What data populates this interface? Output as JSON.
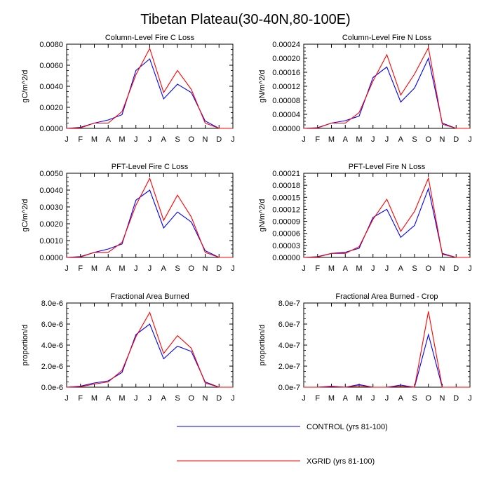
{
  "figure": {
    "title": "Tibetan Plateau(30-40N,80-100E)"
  },
  "legend": {
    "entries": [
      {
        "label": "CONTROL (yrs 81-100)",
        "color": "#0000ff"
      },
      {
        "label": "XGRID (yrs 81-100)",
        "color": "#ff0000"
      }
    ]
  },
  "chart_data": [
    {
      "type": "line",
      "title": "Column-Level Fire C Loss",
      "xlabel": "",
      "ylabel": "gC/m^2/d",
      "categories": [
        "J",
        "F",
        "M",
        "A",
        "M",
        "J",
        "J",
        "A",
        "S",
        "O",
        "N",
        "D",
        "J"
      ],
      "ylim": [
        0,
        0.008
      ],
      "yticks": [
        "0.0000",
        "0.0020",
        "0.0040",
        "0.0060",
        "0.0080"
      ],
      "series": [
        {
          "name": "CONTROL (yrs 81-100)",
          "color": "#0000ff",
          "values": [
            0,
            0.0001,
            0.0005,
            0.0008,
            0.0013,
            0.0055,
            0.0066,
            0.0028,
            0.0042,
            0.0034,
            0.0007,
            0,
            0
          ]
        },
        {
          "name": "XGRID (yrs 81-100)",
          "color": "#ff0000",
          "values": [
            0,
            5e-05,
            0.0005,
            0.0005,
            0.0016,
            0.0051,
            0.0076,
            0.0034,
            0.0055,
            0.0037,
            0.0005,
            0,
            0
          ]
        }
      ]
    },
    {
      "type": "line",
      "title": "Column-Level Fire N Loss",
      "xlabel": "",
      "ylabel": "gN/m^2/d",
      "categories": [
        "J",
        "F",
        "M",
        "A",
        "M",
        "J",
        "J",
        "A",
        "S",
        "O",
        "N",
        "D",
        "J"
      ],
      "ylim": [
        0,
        0.00024
      ],
      "yticks": [
        "0.00000",
        "0.00004",
        "0.00008",
        "0.00012",
        "0.00016",
        "0.00020",
        "0.00024"
      ],
      "series": [
        {
          "name": "CONTROL (yrs 81-100)",
          "color": "#0000ff",
          "values": [
            0,
            2e-06,
            1.5e-05,
            2.2e-05,
            3.5e-05,
            0.000145,
            0.000175,
            7.5e-05,
            0.000115,
            0.0002,
            1.5e-05,
            0,
            0
          ]
        },
        {
          "name": "XGRID (yrs 81-100)",
          "color": "#ff0000",
          "values": [
            0,
            1e-06,
            1.5e-05,
            1.5e-05,
            4.5e-05,
            0.000135,
            0.00021,
            9.5e-05,
            0.000155,
            0.00023,
            1.2e-05,
            0,
            0
          ]
        }
      ]
    },
    {
      "type": "line",
      "title": "PFT-Level Fire C Loss",
      "xlabel": "",
      "ylabel": "gC/m^2/d",
      "categories": [
        "J",
        "F",
        "M",
        "A",
        "M",
        "J",
        "J",
        "A",
        "S",
        "O",
        "N",
        "D",
        "J"
      ],
      "ylim": [
        0,
        0.005
      ],
      "yticks": [
        "0.0000",
        "0.0010",
        "0.0020",
        "0.0030",
        "0.0040",
        "0.0050"
      ],
      "series": [
        {
          "name": "CONTROL (yrs 81-100)",
          "color": "#0000ff",
          "values": [
            0,
            5e-05,
            0.0003,
            0.0005,
            0.0008,
            0.0034,
            0.004,
            0.00175,
            0.0027,
            0.0021,
            0.0004,
            0,
            0
          ]
        },
        {
          "name": "XGRID (yrs 81-100)",
          "color": "#ff0000",
          "values": [
            0,
            2e-05,
            0.0003,
            0.0003,
            0.0009,
            0.0031,
            0.0047,
            0.0022,
            0.0037,
            0.0024,
            0.0003,
            0,
            0
          ]
        }
      ]
    },
    {
      "type": "line",
      "title": "PFT-Level Fire N Loss",
      "xlabel": "",
      "ylabel": "gN/m^2/d",
      "categories": [
        "J",
        "F",
        "M",
        "A",
        "M",
        "J",
        "J",
        "A",
        "S",
        "O",
        "N",
        "D",
        "J"
      ],
      "ylim": [
        0,
        0.00021
      ],
      "yticks": [
        "0.00000",
        "0.00003",
        "0.00006",
        "0.00009",
        "0.00012",
        "0.00015",
        "0.00018",
        "0.00021"
      ],
      "series": [
        {
          "name": "CONTROL (yrs 81-100)",
          "color": "#0000ff",
          "values": [
            0,
            2e-06,
            1e-05,
            1.3e-05,
            2.3e-05,
            0.0001,
            0.00012,
            5e-05,
            8e-05,
            0.000172,
            1e-05,
            0,
            0
          ]
        },
        {
          "name": "XGRID (yrs 81-100)",
          "color": "#ff0000",
          "values": [
            0,
            1e-06,
            1e-05,
            1e-05,
            2.7e-05,
            9.5e-05,
            0.000145,
            6.5e-05,
            0.000115,
            0.000198,
            8e-06,
            0,
            0
          ]
        }
      ]
    },
    {
      "type": "line",
      "title": "Fractional Area Burned",
      "xlabel": "",
      "ylabel": "proportion/d",
      "categories": [
        "J",
        "F",
        "M",
        "A",
        "M",
        "J",
        "J",
        "A",
        "S",
        "O",
        "N",
        "D",
        "J"
      ],
      "ylim": [
        0,
        8e-06
      ],
      "yticks": [
        "0.0e-6",
        "2.0e-6",
        "4.0e-6",
        "6.0e-6",
        "8.0e-6"
      ],
      "series": [
        {
          "name": "CONTROL (yrs 81-100)",
          "color": "#0000ff",
          "values": [
            0,
            1e-07,
            4e-07,
            6e-07,
            1.4e-06,
            5e-06,
            6e-06,
            2.7e-06,
            3.9e-06,
            3.4e-06,
            5e-07,
            0,
            0
          ]
        },
        {
          "name": "XGRID (yrs 81-100)",
          "color": "#ff0000",
          "values": [
            0,
            5e-08,
            3e-07,
            5e-07,
            1.6e-06,
            4.8e-06,
            7.1e-06,
            3.2e-06,
            4.9e-06,
            3.7e-06,
            4e-07,
            0,
            0
          ]
        }
      ]
    },
    {
      "type": "line",
      "title": "Fractional Area Burned - Crop",
      "xlabel": "",
      "ylabel": "proportion/d",
      "categories": [
        "J",
        "F",
        "M",
        "A",
        "M",
        "J",
        "J",
        "A",
        "S",
        "O",
        "N",
        "D",
        "J"
      ],
      "ylim": [
        0,
        8e-07
      ],
      "yticks": [
        "0.0e-7",
        "2.0e-7",
        "4.0e-7",
        "6.0e-7",
        "8.0e-7"
      ],
      "series": [
        {
          "name": "CONTROL (yrs 81-100)",
          "color": "#0000ff",
          "values": [
            0,
            0,
            1e-08,
            0,
            2.5e-08,
            0,
            0,
            2e-08,
            0,
            5e-07,
            0,
            0,
            0
          ]
        },
        {
          "name": "XGRID (yrs 81-100)",
          "color": "#ff0000",
          "values": [
            0,
            0,
            5e-09,
            0,
            1.5e-08,
            0,
            0,
            1e-08,
            0,
            7.2e-07,
            0,
            0,
            0
          ]
        }
      ]
    }
  ]
}
